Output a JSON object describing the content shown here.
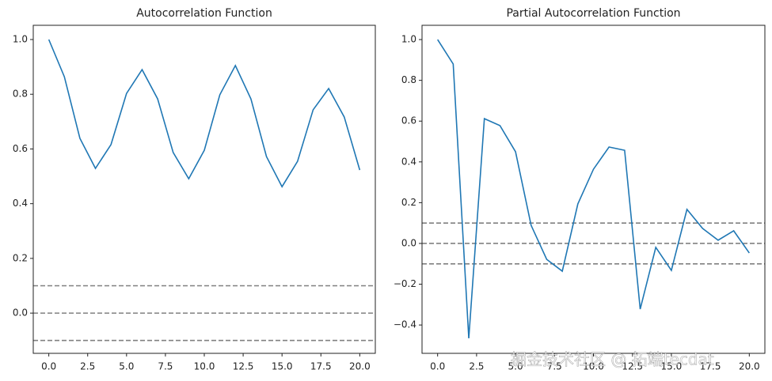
{
  "chart_data": [
    {
      "type": "line",
      "title": "Autocorrelation Function",
      "x": [
        0,
        1,
        2,
        3,
        4,
        5,
        6,
        7,
        8,
        9,
        10,
        11,
        12,
        13,
        14,
        15,
        16,
        17,
        18,
        19,
        20
      ],
      "series": [
        {
          "color": "#1f77b4",
          "values": [
            1.0,
            0.864,
            0.639,
            0.529,
            0.616,
            0.803,
            0.89,
            0.783,
            0.587,
            0.491,
            0.595,
            0.798,
            0.905,
            0.783,
            0.572,
            0.462,
            0.555,
            0.743,
            0.821,
            0.717,
            0.523
          ]
        }
      ],
      "hlines": [
        0.1,
        0,
        -0.1
      ],
      "hline_color": "#808080",
      "xlim": [
        -1,
        21
      ],
      "ylim": [
        -0.147,
        1.052
      ],
      "xticks": [
        {
          "value": 0,
          "label": "0.0"
        },
        {
          "value": 2.5,
          "label": "2.5"
        },
        {
          "value": 5,
          "label": "5.0"
        },
        {
          "value": 7.5,
          "label": "7.5"
        },
        {
          "value": 10,
          "label": "10.0"
        },
        {
          "value": 12.5,
          "label": "12.5"
        },
        {
          "value": 15,
          "label": "15.0"
        },
        {
          "value": 17.5,
          "label": "17.5"
        },
        {
          "value": 20,
          "label": "20.0"
        }
      ],
      "yticks": [
        {
          "value": 0,
          "label": "0.0"
        },
        0.2,
        0.4,
        0.6,
        0.8,
        {
          "value": 1,
          "label": "1.0"
        }
      ]
    },
    {
      "type": "line",
      "title": "Partial Autocorrelation Function",
      "x": [
        0,
        1,
        2,
        3,
        4,
        5,
        6,
        7,
        8,
        9,
        10,
        11,
        12,
        13,
        14,
        15,
        16,
        17,
        18,
        19,
        20
      ],
      "series": [
        {
          "color": "#1f77b4",
          "values": [
            1.0,
            0.88,
            -0.465,
            0.612,
            0.578,
            0.45,
            0.089,
            -0.078,
            -0.136,
            0.194,
            0.364,
            0.473,
            0.457,
            -0.322,
            -0.019,
            -0.132,
            0.167,
            0.074,
            0.016,
            0.062,
            -0.047
          ]
        }
      ],
      "hlines": [
        0.1,
        0,
        -0.1
      ],
      "hline_color": "#808080",
      "xlim": [
        -1,
        21
      ],
      "ylim": [
        -0.539,
        1.07
      ],
      "xticks": [
        {
          "value": 0,
          "label": "0.0"
        },
        {
          "value": 2.5,
          "label": "2.5"
        },
        {
          "value": 5,
          "label": "5.0"
        },
        {
          "value": 7.5,
          "label": "7.5"
        },
        {
          "value": 10,
          "label": "10.0"
        },
        {
          "value": 12.5,
          "label": "12.5"
        },
        {
          "value": 15,
          "label": "15.0"
        },
        {
          "value": 17.5,
          "label": "17.5"
        },
        {
          "value": 20,
          "label": "20.0"
        }
      ],
      "yticks": [
        {
          "value": -0.4,
          "label": "−0.4"
        },
        {
          "value": -0.2,
          "label": "−0.2"
        },
        {
          "value": 0,
          "label": "0.0"
        },
        0.2,
        0.4,
        0.6,
        0.8,
        {
          "value": 1,
          "label": "1.0"
        }
      ]
    }
  ],
  "watermark": "掘金技术社区 @ 拓端tecdat"
}
